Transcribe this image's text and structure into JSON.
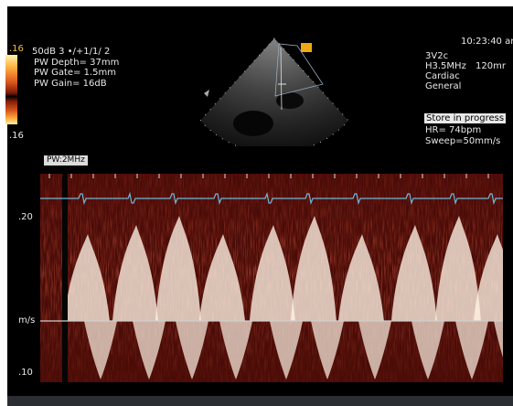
{
  "left_panel": {
    "scale_top": ".16",
    "line1": "50dB  3 •/+1/1/ 2",
    "pw_depth": "PW Depth= 37mm",
    "pw_gate": "PW Gate=  1.5mm",
    "pw_gain": "PW Gain=  16dB",
    "scale_bottom": ".16"
  },
  "right_panel": {
    "time": "10:23:40 ar",
    "probe": "3V2c",
    "freq": "H3.5MHz",
    "depth": "120mr",
    "mode1": "Cardiac",
    "mode2": "General",
    "store": "Store in progress",
    "hr": "HR=  74bpm",
    "sweep": "Sweep=50mm/s"
  },
  "doppler": {
    "mode_label": "PW:2MHz",
    "tick_top": ".20",
    "unit": "m/s",
    "tick_bottom": ".10"
  },
  "colors": {
    "spectral_bright": "#fff4e6",
    "spectral_mid": "#b0543a",
    "spectral_dark": "#4a0c08",
    "ecg_trace": "#6fb6d8",
    "baseline": "#cfcfcf",
    "tag_orange": "#f0a818"
  },
  "icons": [
    "orange-tag-icon",
    "sector-marker-icon"
  ]
}
